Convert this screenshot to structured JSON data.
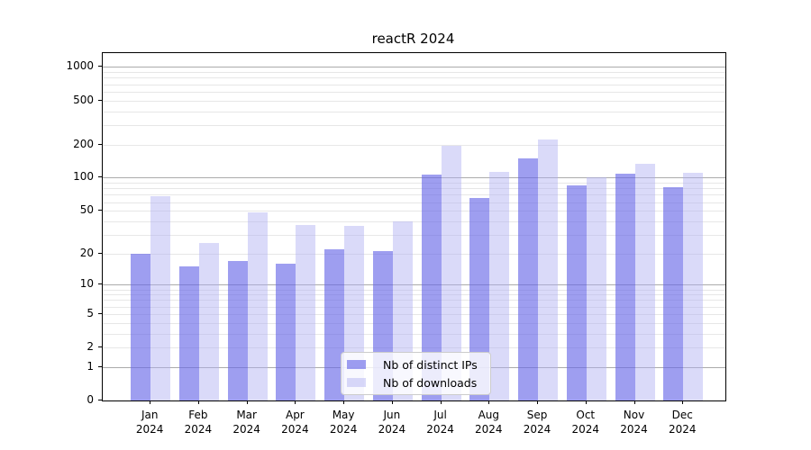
{
  "title": "reactR 2024",
  "chart_data": {
    "type": "bar",
    "title": "reactR 2024",
    "categories": [
      "Jan",
      "Feb",
      "Mar",
      "Apr",
      "May",
      "Jun",
      "Jul",
      "Aug",
      "Sep",
      "Oct",
      "Nov",
      "Dec"
    ],
    "x_year_label": "2024",
    "series": [
      {
        "name": "Nb of distinct IPs",
        "color": "rgba(102,102,232,0.63)",
        "values": [
          20,
          15,
          17,
          16,
          22,
          21,
          107,
          65,
          150,
          85,
          108,
          82
        ]
      },
      {
        "name": "Nb of downloads",
        "color": "rgba(173,173,242,0.45)",
        "values": [
          68,
          25,
          48,
          37,
          36,
          40,
          196,
          112,
          220,
          100,
          135,
          110
        ]
      }
    ],
    "y_axis": {
      "scale": "log10(value+1)",
      "tick_values": [
        0,
        1,
        2,
        5,
        10,
        20,
        50,
        100,
        200,
        500,
        1000
      ],
      "major_gridlines": [
        1,
        10,
        100,
        1000
      ],
      "minor_gridlines": [
        2,
        3,
        4,
        5,
        6,
        7,
        8,
        9,
        20,
        30,
        40,
        50,
        60,
        70,
        80,
        90,
        200,
        300,
        400,
        500,
        600,
        700,
        800,
        900
      ],
      "ylim": [
        0,
        1330
      ]
    },
    "x_axis": {
      "tick_labels": [
        "Jan 2024",
        "Feb 2024",
        "Mar 2024",
        "Apr 2024",
        "May 2024",
        "Jun 2024",
        "Jul 2024",
        "Aug 2024",
        "Sep 2024",
        "Oct 2024",
        "Nov 2024",
        "Dec 2024"
      ]
    },
    "legend": {
      "position": "lower-center",
      "entries": [
        "Nb of distinct IPs",
        "Nb of downloads"
      ]
    },
    "grid": true,
    "colors": {
      "major_grid": "#ababab",
      "minor_grid": "#e7e7e7",
      "spine": "#000000",
      "text": "#000000"
    }
  }
}
